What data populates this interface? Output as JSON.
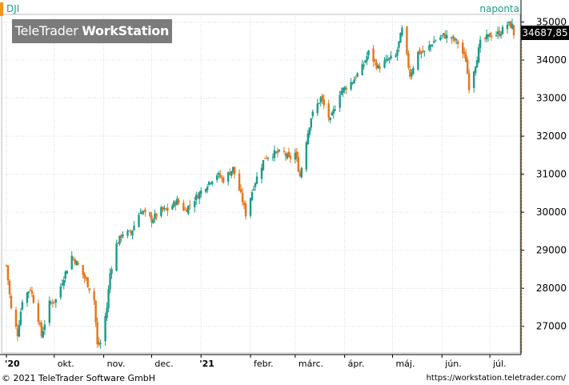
{
  "header": {
    "symbol": "DJI",
    "interval": "naponta",
    "logo_regular": "TeleTrader",
    "logo_bold": "WorkStation"
  },
  "price_tag": "34687,85",
  "footer": {
    "copyright": "© 2021  TeleTrader Software GmbH",
    "url": "https://workstation.teletrader.com/"
  },
  "colors": {
    "up": "#1a9c8a",
    "down": "#e8731a",
    "grid": "#d9d9d9",
    "accent": "#f7941d"
  },
  "chart_data": {
    "type": "candlestick",
    "title": "DJI",
    "interval": "naponta",
    "ylim": [
      26300,
      35200
    ],
    "y_ticks": [
      27000,
      28000,
      29000,
      30000,
      31000,
      32000,
      33000,
      34000,
      35000
    ],
    "x_tick_labels": [
      "'20",
      "okt.",
      "nov.",
      "dec.",
      "'21",
      "febr.",
      "márc.",
      "ápr.",
      "máj.",
      "jún.",
      "júl."
    ],
    "last_value": 34687.85,
    "grid": true,
    "close_series": [
      [
        "2020-09-01",
        28600
      ],
      [
        "2020-09-04",
        27450
      ],
      [
        "2020-09-08",
        26800
      ],
      [
        "2020-09-11",
        27700
      ],
      [
        "2020-09-16",
        28000
      ],
      [
        "2020-09-21",
        27200
      ],
      [
        "2020-09-23",
        26750
      ],
      [
        "2020-09-28",
        27600
      ],
      [
        "2020-10-02",
        27700
      ],
      [
        "2020-10-07",
        28300
      ],
      [
        "2020-10-12",
        28850
      ],
      [
        "2020-10-16",
        28600
      ],
      [
        "2020-10-21",
        28200
      ],
      [
        "2020-10-26",
        27700
      ],
      [
        "2020-10-28",
        26500
      ],
      [
        "2020-10-30",
        26550
      ],
      [
        "2020-11-03",
        27500
      ],
      [
        "2020-11-05",
        28400
      ],
      [
        "2020-11-09",
        29150
      ],
      [
        "2020-11-13",
        29450
      ],
      [
        "2020-11-18",
        29450
      ],
      [
        "2020-11-24",
        30050
      ],
      [
        "2020-12-01",
        29800
      ],
      [
        "2020-12-07",
        30050
      ],
      [
        "2020-12-11",
        30050
      ],
      [
        "2020-12-17",
        30300
      ],
      [
        "2020-12-22",
        30050
      ],
      [
        "2020-12-29",
        30400
      ],
      [
        "2021-01-06",
        30800
      ],
      [
        "2021-01-11",
        31000
      ],
      [
        "2021-01-15",
        30850
      ],
      [
        "2021-01-21",
        31150
      ],
      [
        "2021-01-27",
        30300
      ],
      [
        "2021-01-29",
        29950
      ],
      [
        "2021-02-03",
        30700
      ],
      [
        "2021-02-10",
        31450
      ],
      [
        "2021-02-16",
        31550
      ],
      [
        "2021-02-22",
        31550
      ],
      [
        "2021-02-25",
        31400
      ],
      [
        "2021-03-01",
        31550
      ],
      [
        "2021-03-04",
        30950
      ],
      [
        "2021-03-08",
        31900
      ],
      [
        "2021-03-11",
        32500
      ],
      [
        "2021-03-17",
        33000
      ],
      [
        "2021-03-23",
        32400
      ],
      [
        "2021-03-29",
        33150
      ],
      [
        "2021-04-06",
        33450
      ],
      [
        "2021-04-12",
        33800
      ],
      [
        "2021-04-16",
        34200
      ],
      [
        "2021-04-22",
        33800
      ],
      [
        "2021-04-28",
        34000
      ],
      [
        "2021-05-03",
        34100
      ],
      [
        "2021-05-07",
        34800
      ],
      [
        "2021-05-12",
        33600
      ],
      [
        "2021-05-17",
        34200
      ],
      [
        "2021-05-21",
        34200
      ],
      [
        "2021-05-27",
        34500
      ],
      [
        "2021-06-02",
        34650
      ],
      [
        "2021-06-08",
        34550
      ],
      [
        "2021-06-11",
        34450
      ],
      [
        "2021-06-16",
        34000
      ],
      [
        "2021-06-18",
        33300
      ],
      [
        "2021-06-22",
        33900
      ],
      [
        "2021-06-25",
        34450
      ],
      [
        "2021-07-01",
        34650
      ],
      [
        "2021-07-07",
        34700
      ],
      [
        "2021-07-12",
        34950
      ],
      [
        "2021-07-15",
        34900
      ],
      [
        "2021-07-16",
        34687.85
      ]
    ]
  }
}
